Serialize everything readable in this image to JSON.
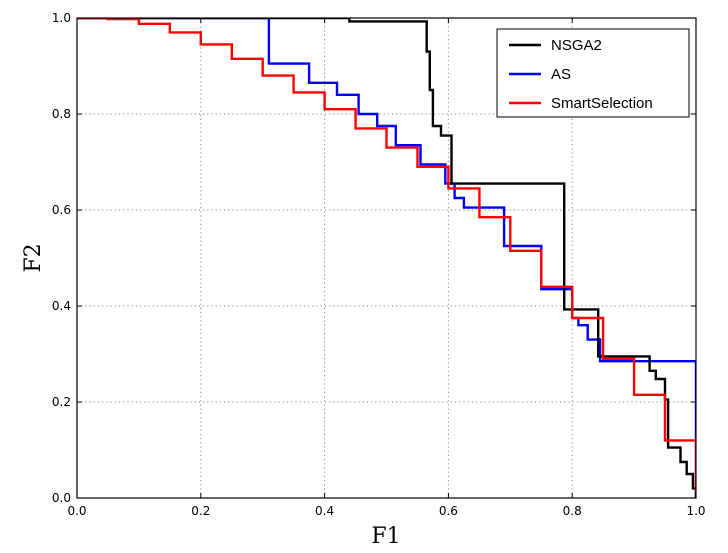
{
  "chart_data": {
    "type": "line",
    "xlabel": "F1",
    "ylabel": "F2",
    "xlim": [
      0,
      1
    ],
    "ylim": [
      0,
      1
    ],
    "xticks": [
      "0.0",
      "0.2",
      "0.4",
      "0.6",
      "0.8",
      "1.0"
    ],
    "yticks": [
      "0.0",
      "0.2",
      "0.4",
      "0.6",
      "0.8",
      "1.0"
    ],
    "grid": true,
    "legend_position": "top-right",
    "series": [
      {
        "name": "NSGA2",
        "color": "#000000",
        "step": true,
        "points": [
          [
            0.0,
            1.0
          ],
          [
            0.44,
            0.993
          ],
          [
            0.565,
            0.93
          ],
          [
            0.57,
            0.85
          ],
          [
            0.575,
            0.775
          ],
          [
            0.588,
            0.755
          ],
          [
            0.605,
            0.655
          ],
          [
            0.787,
            0.393
          ],
          [
            0.842,
            0.295
          ],
          [
            0.925,
            0.265
          ],
          [
            0.935,
            0.248
          ],
          [
            0.95,
            0.205
          ],
          [
            0.955,
            0.105
          ],
          [
            0.975,
            0.075
          ],
          [
            0.985,
            0.05
          ],
          [
            0.995,
            0.02
          ],
          [
            1.0,
            0.0
          ]
        ]
      },
      {
        "name": "AS",
        "color": "#0000ff",
        "step": true,
        "points": [
          [
            0.0,
            1.0
          ],
          [
            0.31,
            0.905
          ],
          [
            0.375,
            0.865
          ],
          [
            0.42,
            0.84
          ],
          [
            0.455,
            0.8
          ],
          [
            0.485,
            0.775
          ],
          [
            0.515,
            0.735
          ],
          [
            0.555,
            0.695
          ],
          [
            0.595,
            0.655
          ],
          [
            0.61,
            0.625
          ],
          [
            0.625,
            0.605
          ],
          [
            0.69,
            0.525
          ],
          [
            0.75,
            0.435
          ],
          [
            0.8,
            0.375
          ],
          [
            0.81,
            0.36
          ],
          [
            0.825,
            0.33
          ],
          [
            0.845,
            0.285
          ],
          [
            1.0,
            0.0
          ]
        ]
      },
      {
        "name": "SmartSelection",
        "color": "#ff0000",
        "step": false,
        "points": [
          [
            0.0,
            1.0
          ],
          [
            0.05,
            0.998
          ],
          [
            0.1,
            0.988
          ],
          [
            0.15,
            0.97
          ],
          [
            0.2,
            0.945
          ],
          [
            0.25,
            0.915
          ],
          [
            0.3,
            0.88
          ],
          [
            0.35,
            0.845
          ],
          [
            0.4,
            0.81
          ],
          [
            0.45,
            0.77
          ],
          [
            0.5,
            0.73
          ],
          [
            0.55,
            0.69
          ],
          [
            0.6,
            0.645
          ],
          [
            0.65,
            0.585
          ],
          [
            0.7,
            0.515
          ],
          [
            0.75,
            0.44
          ],
          [
            0.8,
            0.375
          ],
          [
            0.85,
            0.29
          ],
          [
            0.9,
            0.215
          ],
          [
            0.95,
            0.12
          ],
          [
            1.0,
            0.01
          ]
        ]
      }
    ]
  }
}
